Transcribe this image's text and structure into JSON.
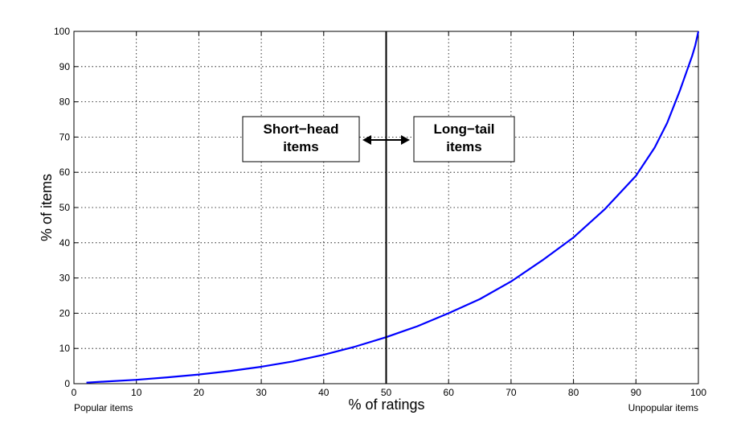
{
  "chart_data": {
    "type": "line",
    "title": "",
    "xlabel": "% of ratings",
    "ylabel": "% of items",
    "xlim": [
      0,
      100
    ],
    "ylim": [
      0,
      100
    ],
    "xticks": [
      0,
      10,
      20,
      30,
      40,
      50,
      60,
      70,
      80,
      90,
      100
    ],
    "yticks": [
      0,
      10,
      20,
      30,
      40,
      50,
      60,
      70,
      80,
      90,
      100
    ],
    "grid": true,
    "series": [
      {
        "color": "#0000ff",
        "x": [
          2,
          5,
          10,
          15,
          20,
          25,
          30,
          35,
          40,
          45,
          50,
          55,
          60,
          65,
          70,
          75,
          80,
          85,
          90,
          93,
          95,
          97,
          98,
          99,
          99.5,
          100
        ],
        "y": [
          0.3,
          0.6,
          1.1,
          1.8,
          2.6,
          3.6,
          4.8,
          6.3,
          8.2,
          10.5,
          13.2,
          16.3,
          20,
          24,
          29,
          35,
          41.5,
          49.5,
          59,
          67,
          74,
          83,
          88,
          93,
          96,
          100
        ]
      }
    ],
    "divider": {
      "x": 50,
      "color": "#000000"
    },
    "annotations": {
      "left_box": {
        "line1": "Short−head",
        "line2": "items"
      },
      "right_box": {
        "line1": "Long−tail",
        "line2": "items"
      }
    },
    "corner_labels": {
      "left": "Popular items",
      "right": "Unpopular items"
    }
  }
}
